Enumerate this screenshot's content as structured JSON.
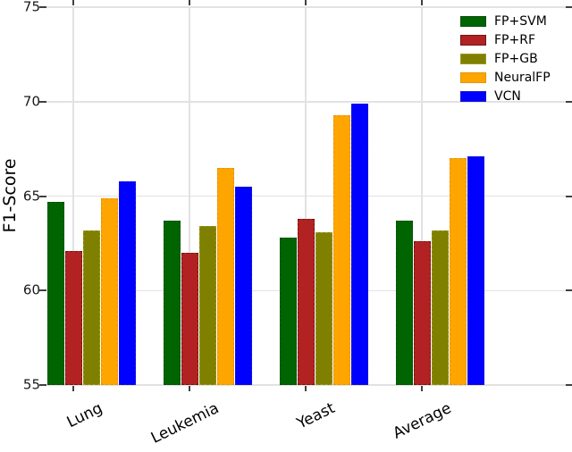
{
  "chart_data": {
    "type": "bar",
    "title": "",
    "xlabel": "",
    "ylabel": "F1-Score",
    "ylim": [
      55,
      75
    ],
    "yticks": [
      55,
      60,
      65,
      70,
      75
    ],
    "grid": true,
    "legend_position": "upper-right",
    "categories": [
      "Lung",
      "Leukemia",
      "Yeast",
      "Average"
    ],
    "series": [
      {
        "name": "FP+SVM",
        "color": "#006400",
        "edge_color": "#0b4d0b",
        "values": [
          64.7,
          63.7,
          62.8,
          63.7
        ]
      },
      {
        "name": "FP+RF",
        "color": "#B22222",
        "edge_color": "#701616",
        "values": [
          62.1,
          62.0,
          63.8,
          62.6
        ]
      },
      {
        "name": "FP+GB",
        "color": "#808000",
        "edge_color": "#9a9a20",
        "values": [
          63.2,
          63.4,
          63.1,
          63.2
        ]
      },
      {
        "name": "NeuralFP",
        "color": "#FFA500",
        "edge_color": "#e0950a",
        "values": [
          64.9,
          66.5,
          69.3,
          67.0
        ]
      },
      {
        "name": "VCN",
        "color": "#0000FF",
        "edge_color": "#1515cc",
        "values": [
          65.8,
          65.5,
          69.9,
          67.1
        ]
      }
    ]
  }
}
